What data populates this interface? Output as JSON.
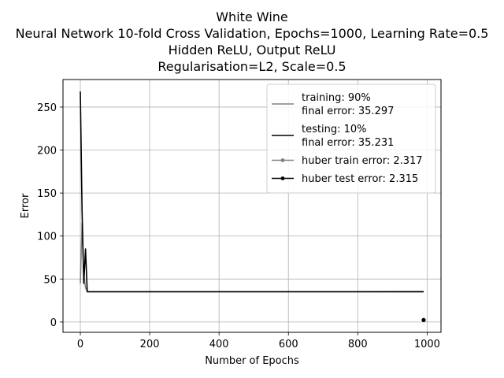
{
  "chart_data": {
    "type": "line",
    "title": [
      "White Wine",
      "Neural Network 10-fold Cross Validation, Epochs=1000, Learning Rate=0.5",
      "Hidden ReLU, Output ReLU",
      "Regularisation=L2, Scale=0.5"
    ],
    "xlabel": "Number of Epochs",
    "ylabel": "Error",
    "xlim": [
      -50,
      1040
    ],
    "ylim": [
      -12,
      282
    ],
    "xticks": [
      0,
      200,
      400,
      600,
      800,
      1000
    ],
    "yticks": [
      0,
      50,
      100,
      150,
      200,
      250
    ],
    "grid": true,
    "legend_position": "top-right",
    "series": [
      {
        "name": "training: 90%\nfinal error: 35.297",
        "legend_lines": [
          "training: 90%",
          "final error: 35.297"
        ],
        "color": "#808080",
        "marker": "none",
        "x": [
          0,
          5,
          10,
          15,
          20,
          30,
          50,
          100,
          200,
          400,
          600,
          800,
          990
        ],
        "y": [
          45,
          115,
          55,
          40,
          35.3,
          35.3,
          35.3,
          35.3,
          35.3,
          35.3,
          35.3,
          35.3,
          35.297
        ]
      },
      {
        "name": "testing: 10%\nfinal error: 35.231",
        "legend_lines": [
          "testing: 10%",
          "final error: 35.231"
        ],
        "color": "#000000",
        "marker": "none",
        "x": [
          0,
          5,
          10,
          15,
          20,
          30,
          50,
          100,
          200,
          400,
          600,
          800,
          990
        ],
        "y": [
          268,
          130,
          45,
          85,
          35.2,
          35.2,
          35.2,
          35.2,
          35.2,
          35.2,
          35.2,
          35.2,
          35.231
        ]
      },
      {
        "name": "huber train error: 2.317",
        "legend_lines": [
          "huber train error: 2.317"
        ],
        "color": "#808080",
        "marker": "dot",
        "x": [
          990
        ],
        "y": [
          2.317
        ]
      },
      {
        "name": "huber test error: 2.315",
        "legend_lines": [
          "huber test error: 2.315"
        ],
        "color": "#000000",
        "marker": "dot",
        "x": [
          990
        ],
        "y": [
          2.315
        ]
      }
    ]
  }
}
